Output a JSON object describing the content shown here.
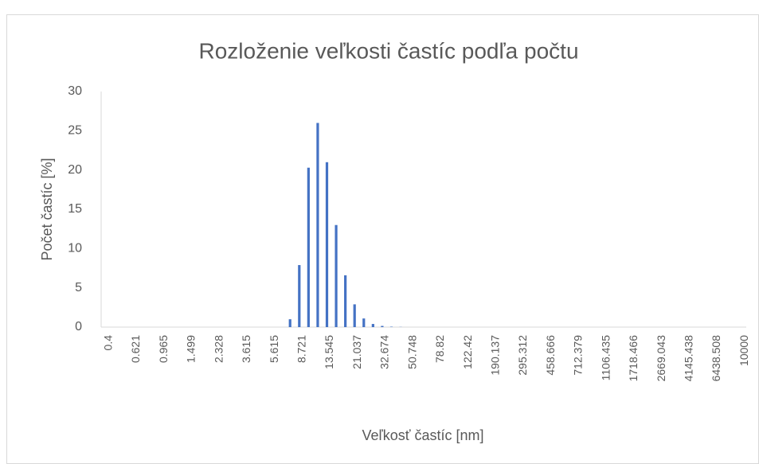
{
  "chart_data": {
    "type": "bar",
    "title": "Rozloženie veľkosti častíc podľa počtu",
    "xlabel": "Veľkosť častíc [nm]",
    "ylabel": "Počet častíc [%]",
    "color": "#4472c4",
    "categories": [
      "0.4",
      null,
      null,
      "0.621",
      null,
      null,
      "0.965",
      null,
      null,
      "1.499",
      null,
      null,
      "2.328",
      null,
      null,
      "3.615",
      null,
      null,
      "5.615",
      null,
      null,
      "8.721",
      null,
      null,
      "13.545",
      null,
      null,
      "21.037",
      null,
      null,
      "32.674",
      null,
      null,
      "50.748",
      null,
      null,
      "78.82",
      null,
      null,
      "122.42",
      null,
      null,
      "190.137",
      null,
      null,
      "295.312",
      null,
      null,
      "458.666",
      null,
      null,
      "712.379",
      null,
      null,
      "1106.435",
      null,
      null,
      "1718.466",
      null,
      null,
      "2669.043",
      null,
      null,
      "4145.438",
      null,
      null,
      "6438.508",
      null,
      null,
      "10000"
    ],
    "values": [
      0,
      0,
      0,
      0,
      0,
      0,
      0,
      0,
      0,
      0,
      0,
      0,
      0,
      0,
      0,
      0,
      0,
      0,
      0,
      0,
      1.0,
      7.9,
      20.3,
      26.0,
      21.0,
      13.0,
      6.6,
      2.9,
      1.1,
      0.4,
      0.15,
      0.05,
      0.02,
      0,
      0,
      0,
      0,
      0,
      0,
      0,
      0,
      0,
      0,
      0,
      0,
      0,
      0,
      0,
      0,
      0,
      0,
      0,
      0,
      0,
      0,
      0,
      0,
      0,
      0,
      0,
      0,
      0,
      0,
      0,
      0,
      0,
      0,
      0,
      0,
      0
    ],
    "ylim": [
      0,
      30
    ],
    "yticks": [
      0,
      5,
      10,
      15,
      20,
      25,
      30
    ]
  }
}
